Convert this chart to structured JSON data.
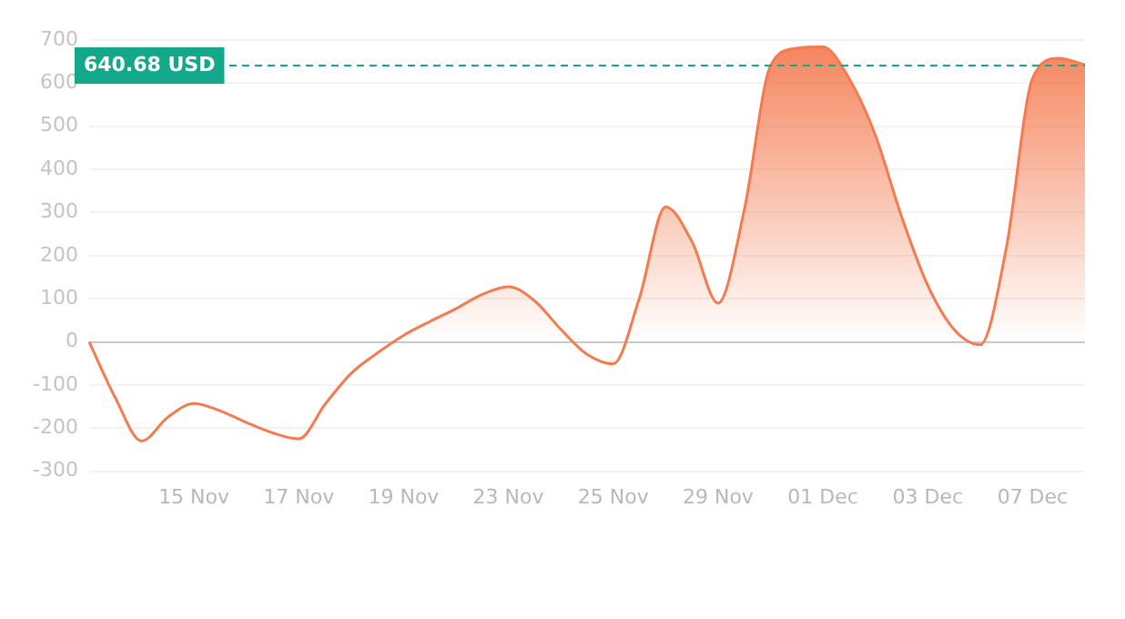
{
  "chart_data": {
    "type": "area",
    "categories": [
      null,
      null,
      null,
      null,
      "15 Nov",
      null,
      null,
      null,
      "17 Nov",
      null,
      null,
      null,
      "19 Nov",
      null,
      null,
      null,
      "23 Nov",
      null,
      null,
      null,
      "25 Nov",
      null,
      null,
      null,
      "29 Nov",
      null,
      null,
      null,
      "01 Dec",
      null,
      null,
      null,
      "03 Dec",
      null,
      null,
      null,
      "07 Dec",
      null,
      null
    ],
    "series": [
      {
        "color": "#f47a4f",
        "values": [
          0,
          -130,
          -230,
          -175,
          -143,
          -160,
          -187,
          -211,
          -225,
          -145,
          -73,
          -26,
          15,
          47,
          77,
          110,
          128,
          95,
          29,
          -29,
          -51,
          102,
          313,
          233,
          90,
          306,
          640,
          681,
          684,
          611,
          480,
          291,
          131,
          29,
          -7,
          218,
          611,
          658,
          643
        ]
      }
    ],
    "ylim": [
      -300,
      700
    ],
    "yticks": [
      -300,
      -200,
      -100,
      0,
      100,
      200,
      300,
      400,
      500,
      600,
      700
    ],
    "grid": "y",
    "legend": false,
    "marker": "none",
    "ref_lines": [
      {
        "axis": "y",
        "value": 640.68,
        "label": "640.68 USD",
        "color": "#13a88a",
        "line_style": "dashed"
      }
    ]
  }
}
